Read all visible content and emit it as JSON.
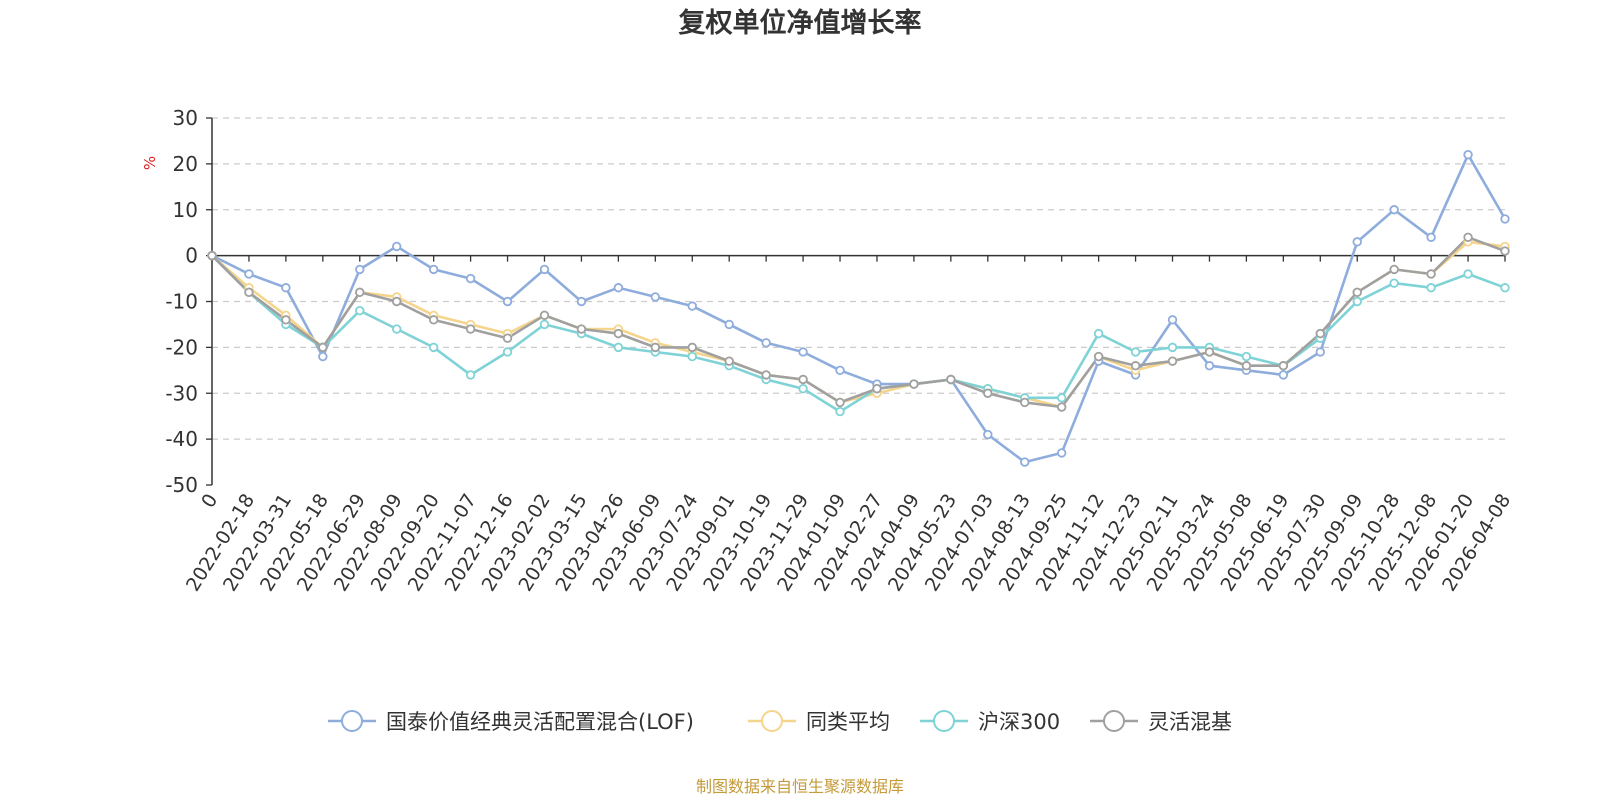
{
  "chart_data": {
    "type": "line",
    "title": "复权单位净值增长率",
    "ylabel": "%",
    "ylim": [
      -50,
      30
    ],
    "yticks": [
      30,
      20,
      10,
      0,
      -10,
      -20,
      -30,
      -40,
      -50
    ],
    "x_tick_labels": [
      "0",
      "2022-02-18",
      "2022-03-31",
      "2022-05-18",
      "2022-06-29",
      "2022-08-09",
      "2022-09-20",
      "2022-11-07",
      "2022-12-16",
      "2023-02-02",
      "2023-03-15",
      "2023-04-26",
      "2023-06-09",
      "2023-07-24",
      "2023-09-01",
      "2023-10-19",
      "2023-11-29",
      "2024-01-09",
      "2024-02-27",
      "2024-04-09",
      "2024-05-23",
      "2024-07-03",
      "2024-08-13",
      "2024-09-25",
      "2024-11-12",
      "2024-12-23",
      "2025-02-11",
      "2025-03-24",
      "2025-05-08",
      "2025-06-19",
      "2025-07-30",
      "2025-09-09",
      "2025-10-28",
      "2025-12-08",
      "2026-01-20",
      "2026-04-08"
    ],
    "x_positions": [
      0,
      1,
      2,
      3,
      4,
      5,
      6,
      7,
      8,
      9,
      10,
      11,
      12,
      13,
      14,
      15,
      16,
      17,
      18,
      19,
      20,
      21,
      22,
      23,
      24,
      25,
      26,
      27,
      28,
      29,
      30,
      31,
      32,
      33,
      34,
      35
    ],
    "series": [
      {
        "name": "国泰价值经典灵活配置混合(LOF)",
        "color": "#8eacdc",
        "values": [
          0,
          -4,
          -7,
          -22,
          -3,
          2,
          -3,
          -5,
          -10,
          -3,
          -10,
          -7,
          -9,
          -11,
          -15,
          -19,
          -21,
          -25,
          -28,
          -28,
          -27,
          -39,
          -45,
          -43,
          -23,
          -26,
          -14,
          -24,
          -25,
          -26,
          -21,
          3,
          10,
          4,
          22,
          8
        ]
      },
      {
        "name": "同类平均",
        "color": "#f5d48c",
        "values": [
          0,
          -7,
          -13,
          -20,
          -8,
          -9,
          -13,
          -15,
          -17,
          -13,
          -16,
          -16,
          -19,
          -21,
          -23,
          -26,
          -27,
          -32,
          -30,
          -28,
          -27,
          -29,
          -31,
          -33,
          -22,
          -25,
          -23,
          -21,
          -24,
          -24,
          -17,
          -8,
          -3,
          -4,
          3,
          2
        ]
      },
      {
        "name": "沪深300",
        "color": "#7fd3d6",
        "values": [
          0,
          -8,
          -15,
          -20,
          -12,
          -16,
          -20,
          -26,
          -21,
          -15,
          -17,
          -20,
          -21,
          -22,
          -24,
          -27,
          -29,
          -34,
          -29,
          -28,
          -27,
          -29,
          -31,
          -31,
          -17,
          -21,
          -20,
          -20,
          -22,
          -24,
          -18,
          -10,
          -6,
          -7,
          -4,
          -7
        ]
      },
      {
        "name": "灵活混基",
        "color": "#a0a0a0",
        "values": [
          0,
          -8,
          -14,
          -20,
          -8,
          -10,
          -14,
          -16,
          -18,
          -13,
          -16,
          -17,
          -20,
          -20,
          -23,
          -26,
          -27,
          -32,
          -29,
          -28,
          -27,
          -30,
          -32,
          -33,
          -22,
          -24,
          -23,
          -21,
          -24,
          -24,
          -17,
          -8,
          -3,
          -4,
          4,
          1
        ]
      }
    ]
  },
  "source_note": "制图数据来自恒生聚源数据库"
}
